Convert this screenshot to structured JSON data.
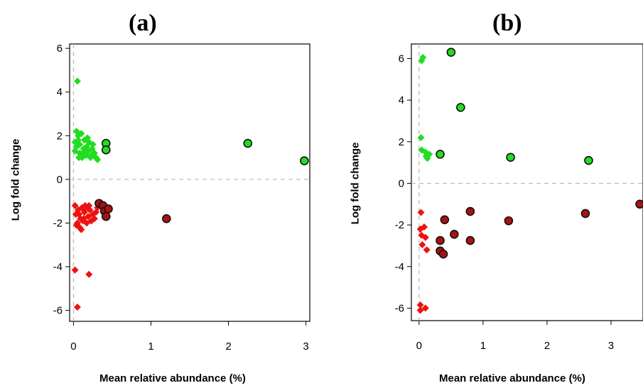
{
  "chart_data": [
    {
      "type": "scatter",
      "title": "(a)",
      "xlabel": "Mean relative abundance (%)",
      "ylabel": "Log fold change",
      "xlim": [
        -0.05,
        3.05
      ],
      "ylim": [
        -6.5,
        6.2
      ],
      "xticks": [
        "0",
        "1",
        "2",
        "3"
      ],
      "yticks": [
        "-6",
        "-4",
        "-2",
        "0",
        "2",
        "4",
        "6"
      ],
      "reference_lines": {
        "x": 0,
        "y": 0,
        "style": "dashed"
      },
      "colors": {
        "up": "#22dd22",
        "down": "#ee1111",
        "down_dark": "#aa1111"
      },
      "series": [
        {
          "color": "up",
          "marker": "diamond",
          "x": [
            0.05,
            0.02,
            0.02,
            0.04,
            0.06,
            0.08,
            0.08,
            0.1,
            0.11,
            0.13,
            0.14,
            0.16,
            0.17,
            0.19,
            0.2,
            0.22,
            0.24,
            0.25,
            0.27,
            0.29,
            0.31,
            0.04,
            0.07,
            0.12,
            0.18,
            0.23,
            0.06,
            0.15
          ],
          "y": [
            4.5,
            1.7,
            1.3,
            1.5,
            2.0,
            1.2,
            1.6,
            2.1,
            1.0,
            1.4,
            1.8,
            1.1,
            1.5,
            1.3,
            1.7,
            1.0,
            1.4,
            1.6,
            1.2,
            1.0,
            0.9,
            2.2,
            1.0,
            1.2,
            1.9,
            1.1,
            1.8,
            1.3
          ]
        },
        {
          "color": "up",
          "marker": "circle",
          "x": [
            0.42,
            0.42,
            2.25,
            2.98
          ],
          "y": [
            1.65,
            1.35,
            1.65,
            0.85
          ]
        },
        {
          "color": "down",
          "marker": "diamond",
          "x": [
            0.02,
            0.03,
            0.05,
            0.06,
            0.08,
            0.09,
            0.11,
            0.12,
            0.14,
            0.15,
            0.17,
            0.19,
            0.21,
            0.23,
            0.25,
            0.27,
            0.29,
            0.31,
            0.04,
            0.07,
            0.1,
            0.13,
            0.16,
            0.2,
            0.02,
            0.2,
            0.05
          ],
          "y": [
            -1.2,
            -1.6,
            -2.0,
            -1.4,
            -2.2,
            -1.8,
            -1.3,
            -1.9,
            -1.5,
            -1.2,
            -2.0,
            -1.7,
            -1.4,
            -1.9,
            -1.6,
            -1.8,
            -1.5,
            -1.3,
            -2.1,
            -1.6,
            -2.3,
            -1.8,
            -1.3,
            -1.2,
            -4.15,
            -4.35,
            -5.85
          ]
        },
        {
          "color": "down_dark",
          "marker": "circle",
          "x": [
            0.33,
            0.38,
            0.4,
            0.42,
            0.45,
            1.2
          ],
          "y": [
            -1.1,
            -1.2,
            -1.45,
            -1.7,
            -1.35,
            -1.8
          ]
        }
      ]
    },
    {
      "type": "scatter",
      "title": "(b)",
      "xlabel": "Mean relative abundance (%)",
      "ylabel": "Log fold change",
      "xlim": [
        -0.12,
        3.5
      ],
      "ylim": [
        -6.6,
        6.7
      ],
      "xticks": [
        "0",
        "1",
        "2",
        "3"
      ],
      "yticks": [
        "-6",
        "-4",
        "-2",
        "0",
        "2",
        "4",
        "6"
      ],
      "reference_lines": {
        "x": 0,
        "y": 0,
        "style": "dashed"
      },
      "colors": {
        "up": "#22dd22",
        "down": "#ee1111",
        "down_dark": "#aa1111"
      },
      "series": [
        {
          "color": "up",
          "marker": "diamond",
          "x": [
            0.06,
            0.04,
            0.03,
            0.04,
            0.1,
            0.13,
            0.16,
            0.11
          ],
          "y": [
            6.05,
            5.9,
            2.2,
            1.6,
            1.5,
            1.2,
            1.4,
            1.3
          ]
        },
        {
          "color": "up",
          "marker": "circle",
          "x": [
            0.5,
            0.65,
            0.33,
            1.43,
            2.65
          ],
          "y": [
            6.3,
            3.65,
            1.4,
            1.25,
            1.1
          ]
        },
        {
          "color": "down",
          "marker": "diamond",
          "x": [
            0.03,
            0.02,
            0.04,
            0.08,
            0.12,
            0.02,
            0.05,
            0.1,
            0.02,
            0.1
          ],
          "y": [
            -1.4,
            -2.2,
            -2.5,
            -2.1,
            -3.2,
            -5.85,
            -2.95,
            -6.0,
            -6.1,
            -2.6
          ]
        },
        {
          "color": "down_dark",
          "marker": "circle",
          "x": [
            0.4,
            0.33,
            0.55,
            0.33,
            0.38,
            0.8,
            0.8,
            1.4,
            2.6,
            3.45
          ],
          "y": [
            -1.75,
            -2.75,
            -2.45,
            -3.25,
            -3.4,
            -1.35,
            -2.75,
            -1.8,
            -1.45,
            -1.0
          ]
        }
      ]
    }
  ]
}
